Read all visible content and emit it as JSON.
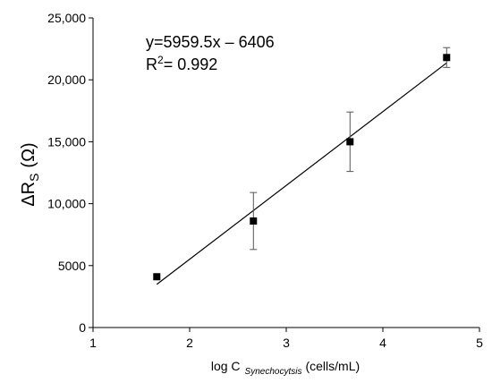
{
  "chart_data": {
    "type": "scatter",
    "xlabel": {
      "prefix": "log C",
      "subscript": "Synechocytsis",
      "suffix": "(cells/mL)"
    },
    "ylabel": {
      "symbol": "ΔR",
      "subscript": "S",
      "unit": "(Ω)"
    },
    "xlim": [
      1,
      5
    ],
    "ylim": [
      0,
      25000
    ],
    "x_ticks": [
      1,
      2,
      3,
      4,
      5
    ],
    "x_tick_labels": [
      "1",
      "2",
      "3",
      "4",
      "5"
    ],
    "y_ticks": [
      0,
      5000,
      10000,
      15000,
      20000,
      25000
    ],
    "y_tick_labels": [
      "0",
      "5000",
      "10,000",
      "15,000",
      "20,000",
      "25,000"
    ],
    "grid": false,
    "series": [
      {
        "marker": "square",
        "color": "#000000",
        "points": [
          {
            "x": 1.66,
            "y": 4100,
            "err": 0
          },
          {
            "x": 2.66,
            "y": 8600,
            "err": 2300
          },
          {
            "x": 3.66,
            "y": 15000,
            "err": 2400
          },
          {
            "x": 4.66,
            "y": 21800,
            "err": 800
          }
        ]
      }
    ],
    "fit": {
      "slope": 5959.5,
      "intercept": -6406,
      "x_range": [
        1.66,
        4.66
      ],
      "equation_text": "y=5959.5x – 6406",
      "r2_prefix": "R",
      "r2_sup": "2",
      "r2_value": "= 0.992"
    }
  }
}
